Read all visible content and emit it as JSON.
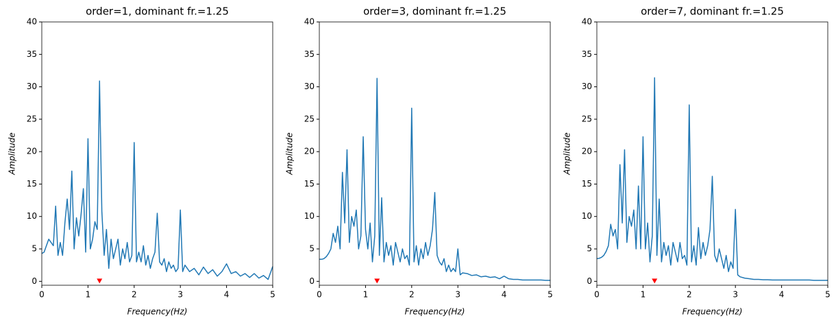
{
  "chart_data": [
    {
      "type": "line",
      "title": "order=1, dominant fr.=1.25",
      "x_label": "Frequency(Hz)",
      "y_label": "Amplitude",
      "xlim": [
        0,
        5
      ],
      "ylim": [
        -0.6,
        40
      ],
      "xticks": [
        0,
        1,
        2,
        3,
        4,
        5
      ],
      "yticks": [
        0,
        5,
        10,
        15,
        20,
        25,
        30,
        35,
        40
      ],
      "marker": {
        "x": 1.25,
        "y": 0,
        "color": "#ff0000"
      },
      "series": [
        {
          "color": "#1f77b4",
          "x": [
            0,
            0.05,
            0.1,
            0.15,
            0.2,
            0.25,
            0.3,
            0.35,
            0.4,
            0.45,
            0.5,
            0.55,
            0.6,
            0.65,
            0.7,
            0.75,
            0.8,
            0.85,
            0.9,
            0.95,
            1,
            1.05,
            1.1,
            1.15,
            1.2,
            1.25,
            1.3,
            1.35,
            1.4,
            1.45,
            1.5,
            1.55,
            1.6,
            1.65,
            1.7,
            1.75,
            1.8,
            1.85,
            1.9,
            1.95,
            2,
            2.05,
            2.1,
            2.15,
            2.2,
            2.25,
            2.3,
            2.35,
            2.4,
            2.45,
            2.5,
            2.55,
            2.6,
            2.65,
            2.7,
            2.75,
            2.8,
            2.85,
            2.9,
            2.95,
            3,
            3.05,
            3.1,
            3.2,
            3.3,
            3.4,
            3.5,
            3.6,
            3.7,
            3.8,
            3.9,
            4,
            4.1,
            4.2,
            4.3,
            4.4,
            4.5,
            4.6,
            4.7,
            4.8,
            4.9,
            5
          ],
          "values": [
            4.3,
            4.5,
            5.5,
            6.5,
            6,
            5.5,
            11.6,
            4,
            6,
            4,
            9,
            12.7,
            8,
            17,
            5,
            9.8,
            7,
            10.3,
            14.3,
            4.5,
            22,
            5,
            6.5,
            9.2,
            8,
            30.9,
            10.8,
            4,
            8,
            2,
            6.5,
            3.5,
            5,
            6.5,
            2.5,
            5,
            3.5,
            6,
            3,
            4,
            21.4,
            3,
            4.5,
            3,
            5.5,
            2.5,
            4,
            2,
            3.5,
            4.5,
            10.5,
            3,
            2.5,
            3.5,
            1.5,
            3,
            2,
            2.5,
            1.5,
            2,
            11,
            1.5,
            2.5,
            1.5,
            2,
            1,
            2.2,
            1.2,
            1.8,
            0.8,
            1.5,
            2.7,
            1.2,
            1.5,
            0.8,
            1.2,
            0.6,
            1.2,
            0.5,
            0.9,
            0.3,
            2.3
          ]
        }
      ]
    },
    {
      "type": "line",
      "title": "order=3, dominant fr.=1.25",
      "x_label": "Frequency(Hz)",
      "y_label": "Amplitude",
      "xlim": [
        0,
        5
      ],
      "ylim": [
        -0.6,
        40
      ],
      "xticks": [
        0,
        1,
        2,
        3,
        4,
        5
      ],
      "yticks": [
        0,
        5,
        10,
        15,
        20,
        25,
        30,
        35,
        40
      ],
      "marker": {
        "x": 1.25,
        "y": 0,
        "color": "#ff0000"
      },
      "series": [
        {
          "color": "#1f77b4",
          "x": [
            0,
            0.05,
            0.1,
            0.15,
            0.2,
            0.25,
            0.3,
            0.35,
            0.4,
            0.45,
            0.5,
            0.55,
            0.6,
            0.65,
            0.7,
            0.75,
            0.8,
            0.85,
            0.9,
            0.95,
            1,
            1.05,
            1.1,
            1.15,
            1.2,
            1.25,
            1.3,
            1.35,
            1.4,
            1.45,
            1.5,
            1.55,
            1.6,
            1.65,
            1.7,
            1.75,
            1.8,
            1.85,
            1.9,
            1.95,
            2,
            2.05,
            2.1,
            2.15,
            2.2,
            2.25,
            2.3,
            2.35,
            2.4,
            2.45,
            2.5,
            2.55,
            2.6,
            2.65,
            2.7,
            2.75,
            2.8,
            2.85,
            2.9,
            2.95,
            3,
            3.05,
            3.1,
            3.2,
            3.3,
            3.4,
            3.5,
            3.6,
            3.7,
            3.8,
            3.9,
            4,
            4.1,
            4.2,
            4.3,
            4.4,
            4.5,
            4.6,
            4.7,
            4.8,
            4.9,
            5
          ],
          "values": [
            3.4,
            3.4,
            3.5,
            3.8,
            4.3,
            5,
            7.4,
            6,
            8.5,
            5,
            16.8,
            9,
            20.3,
            6,
            10,
            8.5,
            11,
            5,
            7,
            22.3,
            8,
            5,
            9,
            3,
            7,
            31.3,
            4,
            12.9,
            3,
            6,
            4,
            5.5,
            2.5,
            6,
            4.5,
            3,
            5,
            3.5,
            4,
            2.5,
            26.7,
            3,
            5.5,
            2.5,
            5,
            3.5,
            6,
            4,
            5.5,
            8,
            13.7,
            4,
            3,
            2.5,
            3.5,
            1.5,
            2.5,
            1.5,
            2,
            1.5,
            5,
            1,
            1.3,
            1.2,
            0.9,
            1,
            0.7,
            0.8,
            0.6,
            0.7,
            0.4,
            0.8,
            0.4,
            0.3,
            0.3,
            0.2,
            0.2,
            0.2,
            0.2,
            0.2,
            0.15,
            0.15
          ]
        }
      ]
    },
    {
      "type": "line",
      "title": "order=7, dominant fr.=1.25",
      "x_label": "Frequency(Hz)",
      "y_label": "Amplitude",
      "xlim": [
        0,
        5
      ],
      "ylim": [
        -0.6,
        40
      ],
      "xticks": [
        0,
        1,
        2,
        3,
        4,
        5
      ],
      "yticks": [
        0,
        5,
        10,
        15,
        20,
        25,
        30,
        35,
        40
      ],
      "marker": {
        "x": 1.25,
        "y": 0,
        "color": "#ff0000"
      },
      "series": [
        {
          "color": "#1f77b4",
          "x": [
            0,
            0.05,
            0.1,
            0.15,
            0.2,
            0.25,
            0.3,
            0.35,
            0.4,
            0.45,
            0.5,
            0.55,
            0.6,
            0.65,
            0.7,
            0.75,
            0.8,
            0.85,
            0.9,
            0.95,
            1,
            1.05,
            1.1,
            1.15,
            1.2,
            1.25,
            1.3,
            1.35,
            1.4,
            1.45,
            1.5,
            1.55,
            1.6,
            1.65,
            1.7,
            1.75,
            1.8,
            1.85,
            1.9,
            1.95,
            2,
            2.05,
            2.1,
            2.15,
            2.2,
            2.25,
            2.3,
            2.35,
            2.4,
            2.45,
            2.5,
            2.55,
            2.6,
            2.65,
            2.7,
            2.75,
            2.8,
            2.85,
            2.9,
            2.95,
            3,
            3.05,
            3.1,
            3.2,
            3.3,
            3.4,
            3.5,
            3.6,
            3.7,
            3.8,
            3.9,
            4,
            4.1,
            4.2,
            4.3,
            4.4,
            4.5,
            4.6,
            4.7,
            4.8,
            4.9,
            5
          ],
          "values": [
            3.5,
            3.55,
            3.7,
            4,
            4.6,
            5.5,
            8.8,
            7,
            8,
            5,
            18,
            9,
            20.3,
            6,
            10,
            8.5,
            11,
            5,
            14.7,
            5,
            22.3,
            5,
            9,
            3,
            7,
            31.4,
            4,
            12.7,
            3,
            6,
            4,
            5.5,
            2.5,
            6,
            4.5,
            3,
            6,
            3.5,
            4,
            2.5,
            27.2,
            3,
            5.5,
            2.5,
            8.3,
            3.5,
            6,
            4,
            5.5,
            8,
            16.2,
            4,
            3,
            5,
            3.5,
            2,
            4,
            1.5,
            3,
            2,
            11.1,
            1,
            0.7,
            0.5,
            0.4,
            0.3,
            0.3,
            0.25,
            0.25,
            0.2,
            0.2,
            0.2,
            0.2,
            0.2,
            0.2,
            0.2,
            0.2,
            0.2,
            0.15,
            0.15,
            0.15,
            0.15
          ]
        }
      ]
    }
  ]
}
